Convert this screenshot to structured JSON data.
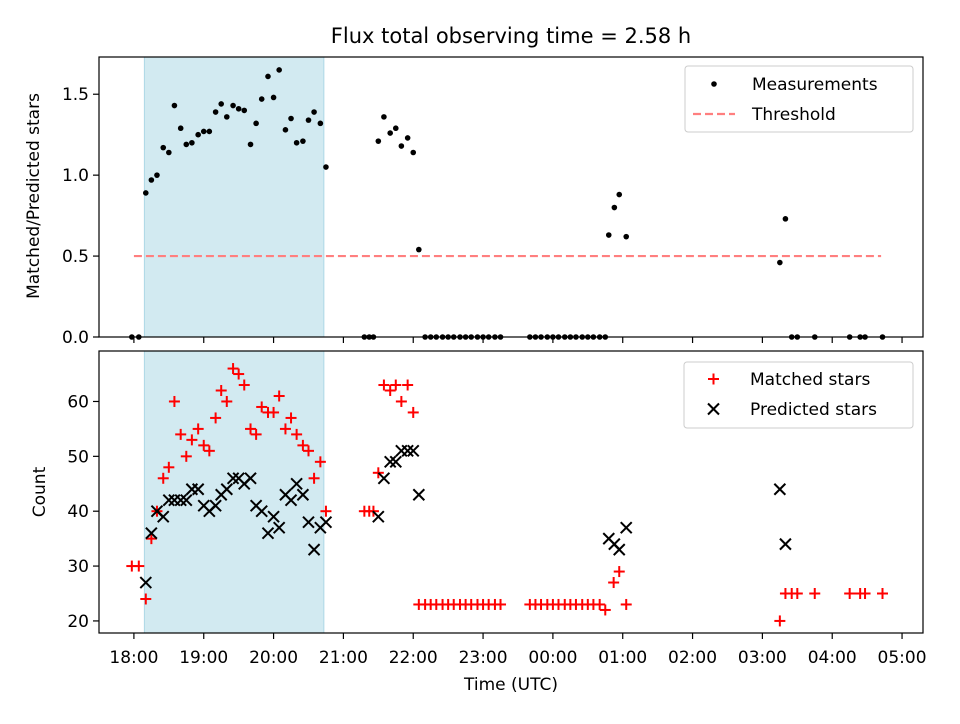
{
  "colors": {
    "shade": "#add8e6",
    "measurement": "#000000",
    "threshold": "#ff7f7f",
    "matched": "#ff0000",
    "predicted": "#000000"
  },
  "chart_data": [
    {
      "type": "scatter",
      "title": "Flux total observing time = 2.58 h",
      "ylabel": "Matched/Predicted stars",
      "xlabel": "",
      "xlim": [
        17.5,
        29.3
      ],
      "ylim": [
        0,
        1.73
      ],
      "yticks": [
        0.0,
        0.5,
        1.0,
        1.5
      ],
      "ytick_labels": [
        "0.0",
        "0.5",
        "1.0",
        "1.5"
      ],
      "shaded_interval": [
        18.15,
        20.72
      ],
      "legend": [
        "Measurements",
        "Threshold"
      ],
      "legend_position": "upper right",
      "threshold": {
        "name": "Threshold",
        "value": 0.5,
        "x": [
          18.0,
          28.7
        ]
      },
      "series": [
        {
          "name": "Measurements",
          "points": [
            [
              17.97,
              0.0
            ],
            [
              18.07,
              0.0
            ],
            [
              18.17,
              0.89
            ],
            [
              18.25,
              0.97
            ],
            [
              18.33,
              1.0
            ],
            [
              18.42,
              1.17
            ],
            [
              18.5,
              1.14
            ],
            [
              18.58,
              1.43
            ],
            [
              18.67,
              1.29
            ],
            [
              18.75,
              1.19
            ],
            [
              18.83,
              1.2
            ],
            [
              18.92,
              1.25
            ],
            [
              19.0,
              1.27
            ],
            [
              19.08,
              1.27
            ],
            [
              19.17,
              1.39
            ],
            [
              19.25,
              1.44
            ],
            [
              19.33,
              1.36
            ],
            [
              19.42,
              1.43
            ],
            [
              19.5,
              1.41
            ],
            [
              19.58,
              1.4
            ],
            [
              19.67,
              1.19
            ],
            [
              19.75,
              1.32
            ],
            [
              19.83,
              1.47
            ],
            [
              19.92,
              1.61
            ],
            [
              20.0,
              1.48
            ],
            [
              20.08,
              1.65
            ],
            [
              20.17,
              1.28
            ],
            [
              20.25,
              1.35
            ],
            [
              20.33,
              1.2
            ],
            [
              20.42,
              1.21
            ],
            [
              20.5,
              1.34
            ],
            [
              20.58,
              1.39
            ],
            [
              20.67,
              1.32
            ],
            [
              20.75,
              1.05
            ],
            [
              21.3,
              0.0
            ],
            [
              21.37,
              0.0
            ],
            [
              21.43,
              0.0
            ],
            [
              21.5,
              1.21
            ],
            [
              21.58,
              1.36
            ],
            [
              21.67,
              1.26
            ],
            [
              21.75,
              1.29
            ],
            [
              21.83,
              1.18
            ],
            [
              21.92,
              1.23
            ],
            [
              22.0,
              1.14
            ],
            [
              22.08,
              0.54
            ],
            [
              22.17,
              0.0
            ],
            [
              22.25,
              0.0
            ],
            [
              22.33,
              0.0
            ],
            [
              22.42,
              0.0
            ],
            [
              22.5,
              0.0
            ],
            [
              22.58,
              0.0
            ],
            [
              22.67,
              0.0
            ],
            [
              22.75,
              0.0
            ],
            [
              22.83,
              0.0
            ],
            [
              22.92,
              0.0
            ],
            [
              23.0,
              0.0
            ],
            [
              23.08,
              0.0
            ],
            [
              23.17,
              0.0
            ],
            [
              23.25,
              0.0
            ],
            [
              23.67,
              0.0
            ],
            [
              23.75,
              0.0
            ],
            [
              23.83,
              0.0
            ],
            [
              23.92,
              0.0
            ],
            [
              24.0,
              0.0
            ],
            [
              24.08,
              0.0
            ],
            [
              24.17,
              0.0
            ],
            [
              24.25,
              0.0
            ],
            [
              24.33,
              0.0
            ],
            [
              24.42,
              0.0
            ],
            [
              24.5,
              0.0
            ],
            [
              24.58,
              0.0
            ],
            [
              24.67,
              0.0
            ],
            [
              24.75,
              0.0
            ],
            [
              24.8,
              0.63
            ],
            [
              24.88,
              0.8
            ],
            [
              24.95,
              0.88
            ],
            [
              25.05,
              0.62
            ],
            [
              27.25,
              0.46
            ],
            [
              27.33,
              0.73
            ],
            [
              27.42,
              0.0
            ],
            [
              27.5,
              0.0
            ],
            [
              27.75,
              0.0
            ],
            [
              28.25,
              0.0
            ],
            [
              28.4,
              0.0
            ],
            [
              28.47,
              0.0
            ],
            [
              28.72,
              0.0
            ]
          ]
        }
      ]
    },
    {
      "type": "scatter",
      "title": "",
      "ylabel": "Count",
      "xlabel": "Time (UTC)",
      "xlim": [
        17.5,
        29.3
      ],
      "ylim": [
        17.8,
        69.2
      ],
      "yticks": [
        20,
        30,
        40,
        50,
        60
      ],
      "ytick_labels": [
        "20",
        "30",
        "40",
        "50",
        "60"
      ],
      "xticks": [
        18,
        19,
        20,
        21,
        22,
        23,
        24,
        25,
        26,
        27,
        28,
        29
      ],
      "xtick_labels": [
        "18:00",
        "19:00",
        "20:00",
        "21:00",
        "22:00",
        "23:00",
        "00:00",
        "01:00",
        "02:00",
        "03:00",
        "04:00",
        "05:00"
      ],
      "shaded_interval": [
        18.15,
        20.72
      ],
      "legend": [
        "Matched stars",
        "Predicted stars"
      ],
      "legend_position": "upper right",
      "series": [
        {
          "name": "Matched stars",
          "points": [
            [
              17.97,
              30
            ],
            [
              18.07,
              30
            ],
            [
              18.17,
              24
            ],
            [
              18.25,
              35
            ],
            [
              18.33,
              40
            ],
            [
              18.42,
              46
            ],
            [
              18.5,
              48
            ],
            [
              18.58,
              60
            ],
            [
              18.67,
              54
            ],
            [
              18.75,
              50
            ],
            [
              18.83,
              53
            ],
            [
              18.92,
              55
            ],
            [
              19.0,
              52
            ],
            [
              19.08,
              51
            ],
            [
              19.17,
              57
            ],
            [
              19.25,
              62
            ],
            [
              19.33,
              60
            ],
            [
              19.42,
              66
            ],
            [
              19.5,
              65
            ],
            [
              19.58,
              63
            ],
            [
              19.67,
              55
            ],
            [
              19.75,
              54
            ],
            [
              19.83,
              59
            ],
            [
              19.92,
              58
            ],
            [
              20.0,
              58
            ],
            [
              20.08,
              61
            ],
            [
              20.17,
              55
            ],
            [
              20.25,
              57
            ],
            [
              20.33,
              54
            ],
            [
              20.42,
              52
            ],
            [
              20.5,
              51
            ],
            [
              20.58,
              46
            ],
            [
              20.67,
              49
            ],
            [
              20.75,
              40
            ],
            [
              21.3,
              40
            ],
            [
              21.37,
              40
            ],
            [
              21.43,
              40
            ],
            [
              21.5,
              47
            ],
            [
              21.58,
              63
            ],
            [
              21.67,
              62
            ],
            [
              21.75,
              63
            ],
            [
              21.83,
              60
            ],
            [
              21.92,
              63
            ],
            [
              22.0,
              58
            ],
            [
              22.08,
              23
            ],
            [
              22.17,
              23
            ],
            [
              22.25,
              23
            ],
            [
              22.33,
              23
            ],
            [
              22.42,
              23
            ],
            [
              22.5,
              23
            ],
            [
              22.58,
              23
            ],
            [
              22.67,
              23
            ],
            [
              22.75,
              23
            ],
            [
              22.83,
              23
            ],
            [
              22.92,
              23
            ],
            [
              23.0,
              23
            ],
            [
              23.08,
              23
            ],
            [
              23.17,
              23
            ],
            [
              23.25,
              23
            ],
            [
              23.67,
              23
            ],
            [
              23.75,
              23
            ],
            [
              23.83,
              23
            ],
            [
              23.92,
              23
            ],
            [
              24.0,
              23
            ],
            [
              24.08,
              23
            ],
            [
              24.17,
              23
            ],
            [
              24.25,
              23
            ],
            [
              24.33,
              23
            ],
            [
              24.42,
              23
            ],
            [
              24.5,
              23
            ],
            [
              24.58,
              23
            ],
            [
              24.67,
              23
            ],
            [
              24.75,
              22
            ],
            [
              24.87,
              27
            ],
            [
              24.95,
              29
            ],
            [
              25.05,
              23
            ],
            [
              27.25,
              20
            ],
            [
              27.33,
              25
            ],
            [
              27.42,
              25
            ],
            [
              27.5,
              25
            ],
            [
              27.75,
              25
            ],
            [
              28.25,
              25
            ],
            [
              28.4,
              25
            ],
            [
              28.47,
              25
            ],
            [
              28.72,
              25
            ]
          ]
        },
        {
          "name": "Predicted stars",
          "points": [
            [
              18.17,
              27
            ],
            [
              18.25,
              36
            ],
            [
              18.33,
              40
            ],
            [
              18.42,
              39
            ],
            [
              18.5,
              42
            ],
            [
              18.58,
              42
            ],
            [
              18.67,
              42
            ],
            [
              18.75,
              42
            ],
            [
              18.83,
              44
            ],
            [
              18.92,
              44
            ],
            [
              19.0,
              41
            ],
            [
              19.08,
              40
            ],
            [
              19.17,
              41
            ],
            [
              19.25,
              43
            ],
            [
              19.33,
              44
            ],
            [
              19.42,
              46
            ],
            [
              19.5,
              46
            ],
            [
              19.58,
              45
            ],
            [
              19.67,
              46
            ],
            [
              19.75,
              41
            ],
            [
              19.83,
              40
            ],
            [
              19.92,
              36
            ],
            [
              20.0,
              39
            ],
            [
              20.08,
              37
            ],
            [
              20.17,
              43
            ],
            [
              20.25,
              42
            ],
            [
              20.33,
              45
            ],
            [
              20.42,
              43
            ],
            [
              20.5,
              38
            ],
            [
              20.58,
              33
            ],
            [
              20.67,
              37
            ],
            [
              20.75,
              38
            ],
            [
              21.5,
              39
            ],
            [
              21.58,
              46
            ],
            [
              21.67,
              49
            ],
            [
              21.75,
              49
            ],
            [
              21.83,
              51
            ],
            [
              21.92,
              51
            ],
            [
              22.0,
              51
            ],
            [
              22.08,
              43
            ],
            [
              24.8,
              35
            ],
            [
              24.88,
              34
            ],
            [
              24.95,
              33
            ],
            [
              25.05,
              37
            ],
            [
              27.25,
              44
            ],
            [
              27.33,
              34
            ]
          ]
        }
      ]
    }
  ]
}
